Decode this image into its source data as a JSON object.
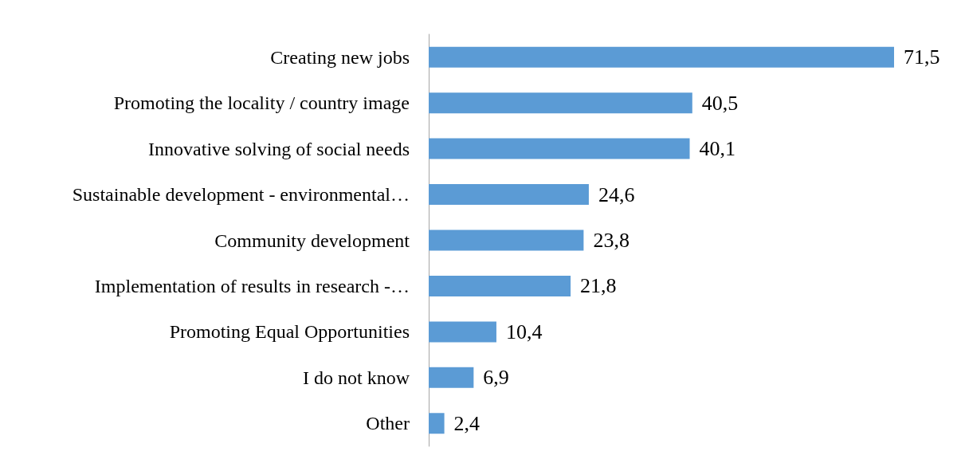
{
  "chart_data": {
    "type": "bar",
    "orientation": "horizontal",
    "categories": [
      "Creating new jobs",
      "Promoting the locality / country image",
      "Innovative solving of social needs",
      "Sustainable development - environmental…",
      "Community development",
      "Implementation of results in research -…",
      "Promoting Equal Opportunities",
      "I do not know",
      "Other"
    ],
    "values": [
      71.5,
      40.5,
      40.1,
      24.6,
      23.8,
      21.8,
      10.4,
      6.9,
      2.4
    ],
    "value_labels": [
      "71,5",
      "40,5",
      "40,1",
      "24,6",
      "23,8",
      "21,8",
      "10,4",
      "6,9",
      "2,4"
    ],
    "color": "#5b9bd5"
  }
}
